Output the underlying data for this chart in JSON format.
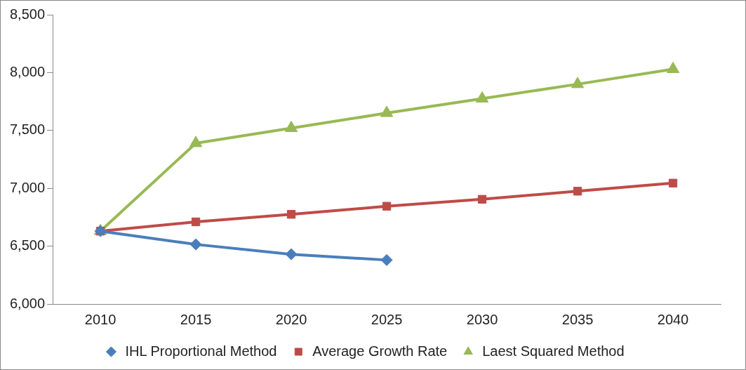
{
  "chart_data": {
    "type": "line",
    "categories": [
      "2010",
      "2015",
      "2020",
      "2025",
      "2030",
      "2035",
      "2040"
    ],
    "series": [
      {
        "name": "IHL Proportional Method",
        "color": "#4a7ebb",
        "marker": "diamond",
        "values": [
          6630,
          6515,
          6430,
          6380,
          null,
          null,
          null
        ]
      },
      {
        "name": "Average Growth Rate",
        "color": "#be4b48",
        "marker": "square",
        "values": [
          6630,
          6710,
          6775,
          6845,
          6905,
          6975,
          7045
        ]
      },
      {
        "name": "Laest Squared Method",
        "color": "#98b954",
        "marker": "triangle",
        "values": [
          6630,
          7390,
          7520,
          7650,
          7775,
          7900,
          8030
        ]
      }
    ],
    "ylim": [
      6000,
      8500
    ],
    "yticks": [
      {
        "value": 6000,
        "label": "6,000"
      },
      {
        "value": 6500,
        "label": "6,500"
      },
      {
        "value": 7000,
        "label": "7,000"
      },
      {
        "value": 7500,
        "label": "7,500"
      },
      {
        "value": 8000,
        "label": "8,000"
      },
      {
        "value": 8500,
        "label": "8,500"
      }
    ],
    "grid": false,
    "legend": "bottom",
    "line_style": "solid"
  }
}
